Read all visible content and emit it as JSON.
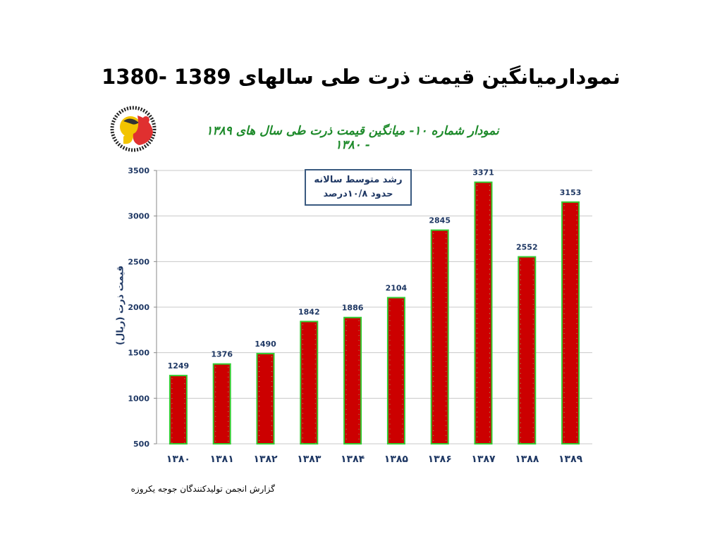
{
  "slide": {
    "title": "نمودارمیانگین قیمت  ذرت طی سالهای  1389 -1380",
    "source_note": "گزارش انجمن تولیدکنندگان جوجه یکروزه"
  },
  "chart_data": {
    "type": "bar",
    "title": "نمودار شماره ۱۰- میانگین قیمت ذرت طی سال های ۱۳۸۹ - ۱۳۸۰",
    "ylabel": "قیمت ذرت (ریال)",
    "xlabel": "",
    "categories": [
      "۱۳۸۰",
      "۱۳۸۱",
      "۱۳۸۲",
      "۱۳۸۳",
      "۱۳۸۴",
      "۱۳۸۵",
      "۱۳۸۶",
      "۱۳۸۷",
      "۱۳۸۸",
      "۱۳۸۹"
    ],
    "values": [
      1249,
      1376,
      1490,
      1842,
      1886,
      2104,
      2845,
      3371,
      2552,
      3153
    ],
    "data_labels": [
      "1249",
      "1376",
      "1490",
      "1842",
      "1886",
      "2104",
      "2845",
      "3371",
      "2552",
      "3153"
    ],
    "ylim": [
      500,
      3500
    ],
    "yticks": [
      500,
      1000,
      1500,
      2000,
      2500,
      3000,
      3500
    ],
    "ytick_labels": [
      "500",
      "1000",
      "1500",
      "2000",
      "2500",
      "3000",
      "3500"
    ],
    "grid": true,
    "legend": "none",
    "annotation": {
      "line1": "رشد متوسط سالانه",
      "line2": "حدود ۱۰/۸درصد"
    },
    "colors": {
      "bar_fill": "#cc0000",
      "bar_edge": "#33cc33",
      "data_label": "#1f3864",
      "axis_text": "#1f3864",
      "title": "#1d8a2a",
      "grid": "#c8c8c8"
    }
  }
}
